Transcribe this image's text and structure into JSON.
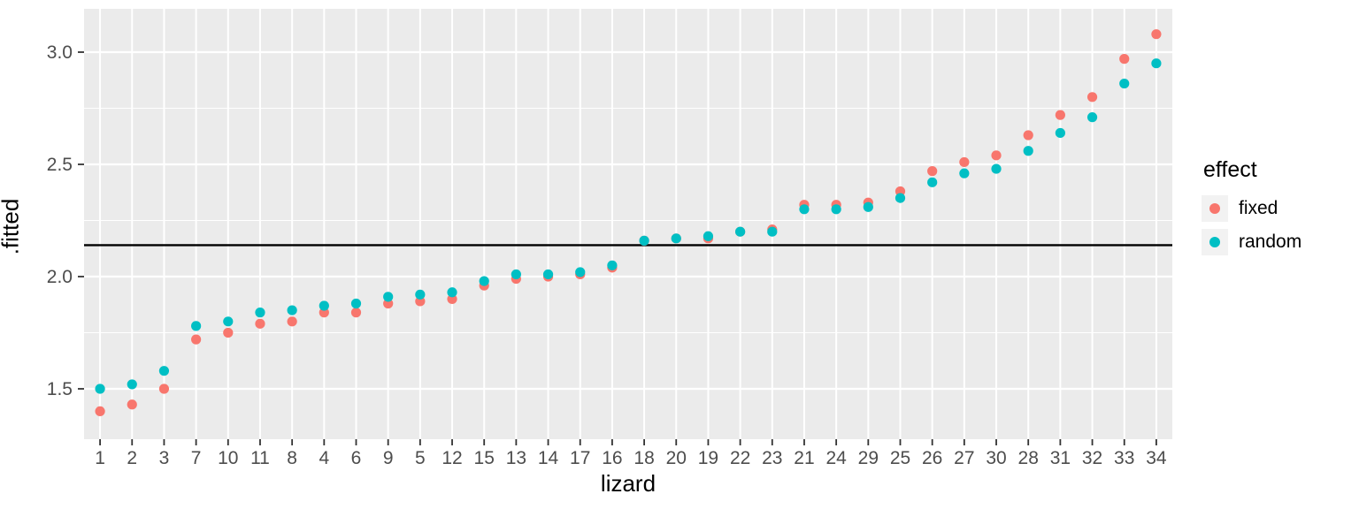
{
  "chart_data": {
    "type": "scatter",
    "title": "",
    "xlabel": "lizard",
    "ylabel": ".fitted",
    "categories": [
      "1",
      "2",
      "3",
      "7",
      "10",
      "11",
      "8",
      "4",
      "6",
      "9",
      "5",
      "12",
      "15",
      "13",
      "14",
      "17",
      "16",
      "18",
      "20",
      "19",
      "22",
      "23",
      "21",
      "24",
      "29",
      "25",
      "26",
      "27",
      "30",
      "28",
      "31",
      "32",
      "33",
      "34"
    ],
    "series": [
      {
        "name": "fixed",
        "color": "#F8766D",
        "values": [
          1.4,
          1.43,
          1.5,
          1.72,
          1.75,
          1.79,
          1.8,
          1.84,
          1.84,
          1.88,
          1.89,
          1.9,
          1.96,
          1.99,
          2.0,
          2.01,
          2.04,
          2.16,
          2.17,
          2.17,
          2.2,
          2.21,
          2.32,
          2.32,
          2.33,
          2.38,
          2.47,
          2.51,
          2.54,
          2.63,
          2.72,
          2.8,
          2.97,
          3.08
        ]
      },
      {
        "name": "random",
        "color": "#00BFC4",
        "values": [
          1.5,
          1.52,
          1.58,
          1.78,
          1.8,
          1.84,
          1.85,
          1.87,
          1.88,
          1.91,
          1.92,
          1.93,
          1.98,
          2.01,
          2.01,
          2.02,
          2.05,
          2.16,
          2.17,
          2.18,
          2.2,
          2.2,
          2.3,
          2.3,
          2.31,
          2.35,
          2.42,
          2.46,
          2.48,
          2.56,
          2.64,
          2.71,
          2.86,
          2.95
        ]
      }
    ],
    "hline": 2.14,
    "y_ticks": [
      "1.5",
      "2.0",
      "2.5",
      "3.0"
    ],
    "y_tick_values": [
      1.5,
      2.0,
      2.5,
      3.0
    ],
    "y_minor_values": [
      1.75,
      2.25,
      2.75
    ],
    "ylim": [
      1.28,
      3.19
    ],
    "legend": {
      "title": "effect",
      "position": "right"
    },
    "grid": true,
    "style": {
      "panel_background": "#EBEBEB",
      "grid_color": "#FFFFFF",
      "hline_color": "#000000",
      "tick_label_color": "#4D4D4D",
      "tick_mark_color": "#333333",
      "axis_title_color": "#000000"
    }
  }
}
